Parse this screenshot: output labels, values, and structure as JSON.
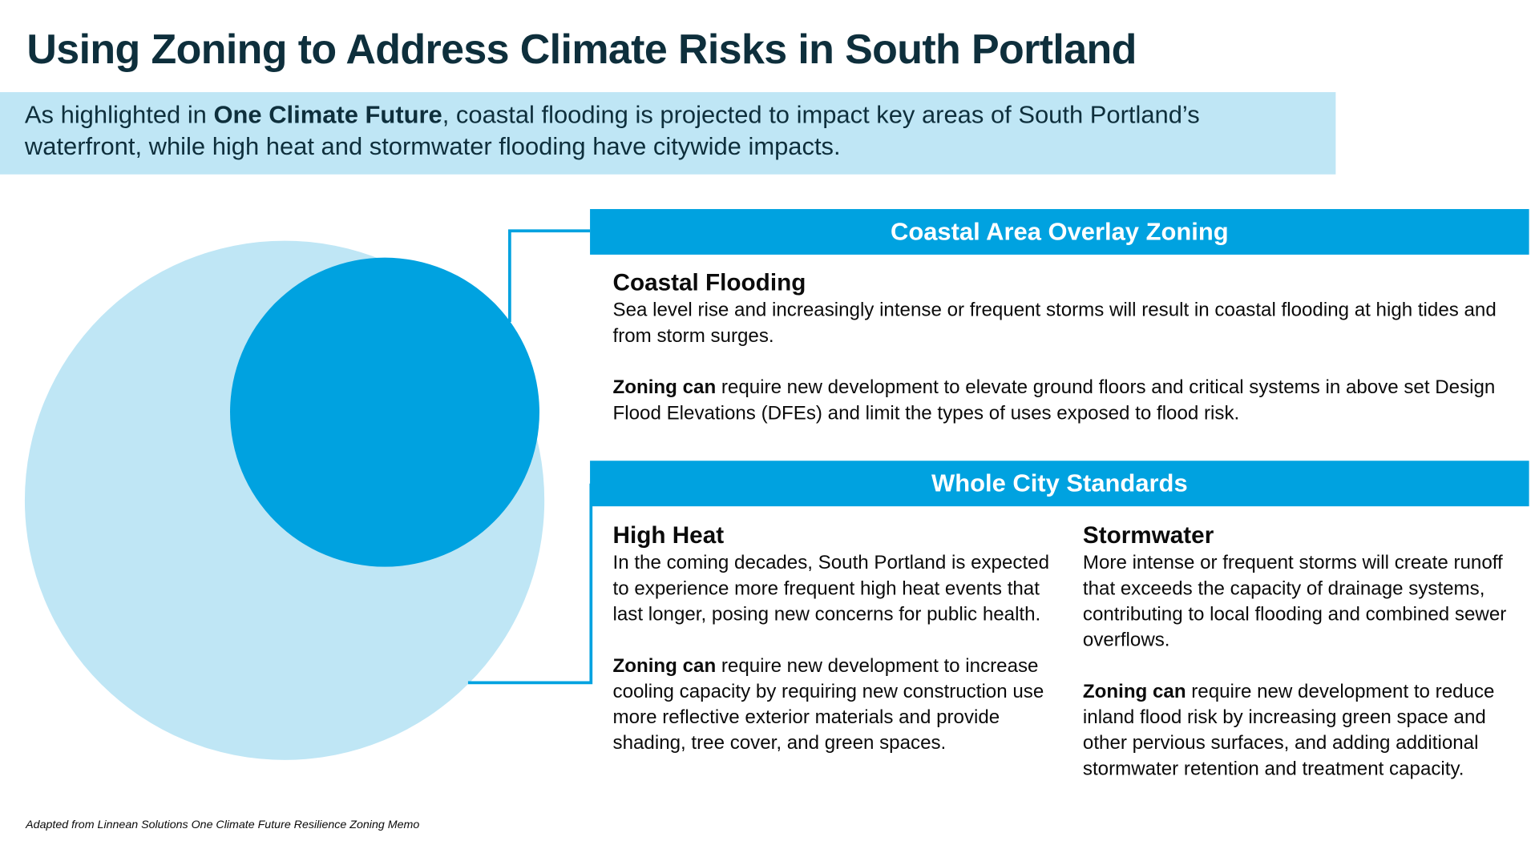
{
  "title": "Using Zoning to Address Climate Risks in South Portland",
  "intro": {
    "pre": "As highlighted in ",
    "bold": "One Climate Future",
    "post": ", coastal flooding is projected to impact key areas of South Portland’s waterfront, while high heat and stormwater flooding have citywide impacts."
  },
  "colors": {
    "light_blue": "#bfe6f5",
    "bright_blue": "#00a2e0",
    "title": "#0e2f3c"
  },
  "coastal": {
    "header": "Coastal Area Overlay Zoning",
    "heading": "Coastal Flooding",
    "body": "Sea level rise and increasingly intense or frequent storms will result in coastal flooding at high tides and from storm surges.",
    "zoning_bold": "Zoning can",
    "zoning": " require new development to elevate ground floors and critical systems in above set Design Flood Elevations (DFEs) and limit the types of uses exposed to flood risk."
  },
  "city": {
    "header": "Whole City Standards",
    "heat": {
      "heading": "High Heat",
      "body": "In the coming decades, South Portland is expected to experience more frequent high heat events that last longer, posing new concerns for public health.",
      "zoning_bold": "Zoning can",
      "zoning": " require new development to increase cooling capacity by requiring new construction use more reflective exterior materials and provide shading, tree cover, and green spaces."
    },
    "storm": {
      "heading": "Stormwater",
      "body": "More intense or frequent storms will create runoff that exceeds the capacity of drainage systems, contributing to local flooding and combined sewer overflows.",
      "zoning_bold": "Zoning can",
      "zoning": " require new development to reduce inland flood risk by increasing green space and other pervious surfaces, and adding additional stormwater retention and treatment capacity."
    }
  },
  "footnote": "Adapted from Linnean Solutions One Climate Future Resilience Zoning Memo"
}
